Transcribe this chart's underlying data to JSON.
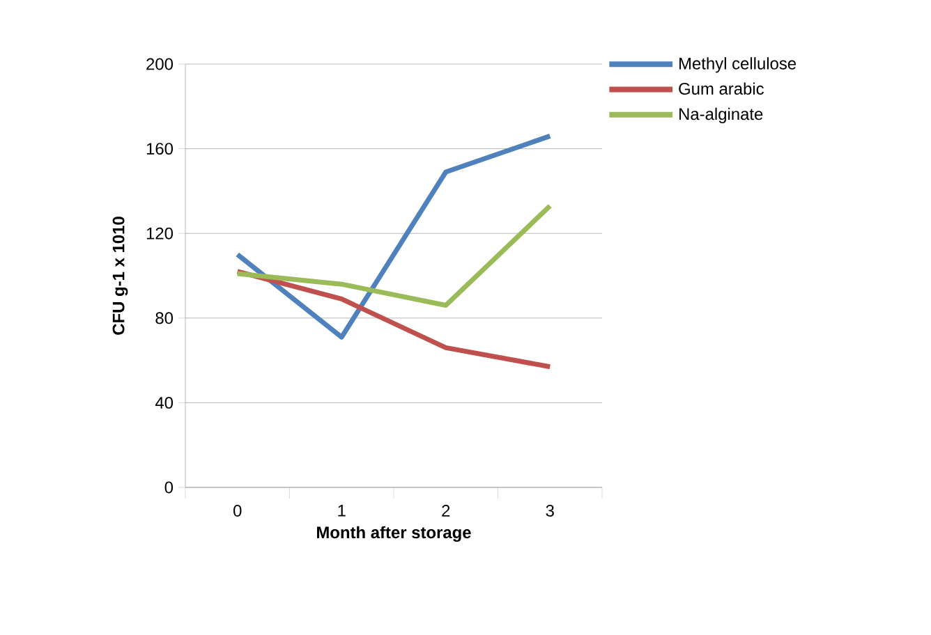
{
  "chart_data": {
    "type": "line",
    "xlabel": "Month after storage",
    "ylabel": "CFU g-1 x 1010",
    "categories": [
      "0",
      "1",
      "2",
      "3"
    ],
    "series": [
      {
        "name": "Methyl cellulose",
        "color": "#4f81bd",
        "values": [
          110,
          71,
          149,
          166
        ]
      },
      {
        "name": "Gum arabic",
        "color": "#c0504d",
        "values": [
          102,
          89,
          66,
          57
        ]
      },
      {
        "name": "Na-alginate",
        "color": "#9bbb59",
        "values": [
          101,
          96,
          86,
          133
        ]
      }
    ],
    "ylim": [
      0,
      200
    ],
    "yticks": [
      0,
      40,
      80,
      120,
      160,
      200
    ],
    "grid": "y",
    "legend": "top right",
    "marker": "none",
    "line_style": "solid"
  }
}
